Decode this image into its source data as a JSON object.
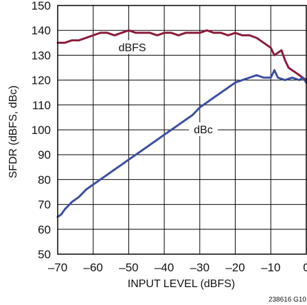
{
  "chart_data": {
    "type": "line",
    "xlabel": "INPUT LEVEL (dBFS)",
    "ylabel": "SFDR (dBFS, dBc)",
    "xlim": [
      -70,
      0
    ],
    "ylim": [
      50,
      150
    ],
    "xticks": [
      -70,
      -60,
      -50,
      -40,
      -30,
      -20,
      -10,
      0
    ],
    "xtick_labels": [
      "–70",
      "–60",
      "–50",
      "–40",
      "–30",
      "–20",
      "–10",
      "0"
    ],
    "yticks": [
      50,
      60,
      70,
      80,
      90,
      100,
      110,
      120,
      130,
      140,
      150
    ],
    "grid": true,
    "series": [
      {
        "name": "dBFS",
        "color": "#8b1a3a",
        "x": [
          -70,
          -68,
          -66,
          -64,
          -62,
          -60,
          -58,
          -56,
          -54,
          -52,
          -50,
          -48,
          -46,
          -44,
          -42,
          -40,
          -38,
          -36,
          -34,
          -32,
          -30,
          -28,
          -26,
          -24,
          -22,
          -20,
          -18,
          -16,
          -14,
          -12,
          -10,
          -9,
          -8,
          -7,
          -6,
          -5,
          -4,
          -3,
          -2,
          -1,
          0
        ],
        "y": [
          135,
          135,
          136,
          136,
          137,
          138,
          139,
          139,
          138,
          139,
          140,
          139,
          139,
          139,
          138,
          139,
          139,
          138,
          139,
          139,
          139,
          140,
          139,
          139,
          138,
          139,
          138,
          138,
          137,
          135,
          133,
          130,
          131,
          132,
          128,
          125,
          124,
          123,
          122,
          121,
          120
        ]
      },
      {
        "name": "dBc",
        "color": "#3a4ea0",
        "x": [
          -70,
          -69,
          -68,
          -66,
          -64,
          -62,
          -60,
          -58,
          -56,
          -54,
          -52,
          -50,
          -48,
          -46,
          -44,
          -42,
          -40,
          -38,
          -36,
          -34,
          -32,
          -30,
          -28,
          -26,
          -24,
          -22,
          -20,
          -18,
          -16,
          -14,
          -12,
          -10,
          -9,
          -8,
          -6,
          -4,
          -2,
          -1,
          0
        ],
        "y": [
          65,
          66,
          68,
          71,
          73,
          76,
          78,
          80,
          82,
          84,
          86,
          88,
          90,
          92,
          94,
          96,
          98,
          100,
          102,
          104,
          106,
          109,
          111,
          113,
          115,
          117,
          119,
          120,
          121,
          122,
          121,
          121,
          124,
          121,
          120,
          121,
          120,
          121,
          119
        ]
      }
    ],
    "annotations": [
      {
        "text": "dBFS",
        "x": -49,
        "y": 133
      },
      {
        "text": "dBc",
        "x": -29,
        "y": 100
      }
    ],
    "figure_id": "238616 G10"
  }
}
